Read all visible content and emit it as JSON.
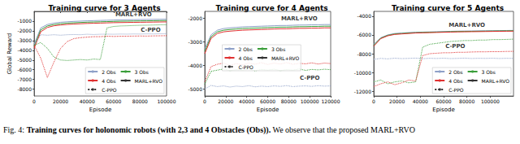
{
  "caption": {
    "label": "Fig. 4:",
    "bold": "Training curves for holonomic robots (with 2,3 and 4 Obstacles (Obs)).",
    "text": "We observe that the proposed MARL+RVO"
  },
  "chart_data": [
    {
      "type": "line",
      "title": "Training curve for 3 Agents",
      "x_label": "Episode",
      "y_label": "Global Reward",
      "x": [
        0,
        5000,
        10000,
        15000,
        20000,
        25000,
        30000,
        35000,
        40000,
        45000,
        50000,
        55000,
        60000,
        65000,
        70000,
        75000,
        80000,
        85000,
        90000,
        95000,
        100000
      ],
      "xlim": [
        0,
        100000
      ],
      "xticks": [
        0,
        20000,
        40000,
        60000,
        80000,
        100000
      ],
      "ylim": [
        -8700,
        0
      ],
      "yticks": [
        -8000,
        -7000,
        -6000,
        -5000,
        -4000,
        -3000,
        -2000,
        -1000
      ],
      "grid": false,
      "legend": "lower right",
      "annotations": [
        {
          "text": "MARL+RVO",
          "x": 75000,
          "y": -350
        },
        {
          "text": "C-PPO",
          "x": 88000,
          "y": -1900
        }
      ],
      "series": [
        {
          "name": "2 Obs",
          "method": "MARL+RVO",
          "line_style": "solid",
          "color": "#8ea0c8",
          "values": [
            -3400,
            -1700,
            -1350,
            -1200,
            -1120,
            -1070,
            -1030,
            -1000,
            -970,
            -950,
            -930,
            -910,
            -890,
            -870,
            -860,
            -850,
            -840,
            -830,
            -820,
            -810,
            -800
          ]
        },
        {
          "name": "3 Obs",
          "method": "MARL+RVO",
          "line_style": "solid",
          "color": "#3a9e3a",
          "values": [
            -3600,
            -1900,
            -1500,
            -1350,
            -1270,
            -1210,
            -1170,
            -1140,
            -1110,
            -1090,
            -1070,
            -1050,
            -1030,
            -1010,
            -1000,
            -990,
            -980,
            -970,
            -960,
            -950,
            -940
          ]
        },
        {
          "name": "4 Obs",
          "method": "MARL+RVO",
          "line_style": "solid",
          "color": "#e03030",
          "values": [
            -3800,
            -2100,
            -1650,
            -1480,
            -1400,
            -1340,
            -1300,
            -1270,
            -1240,
            -1220,
            -1200,
            -1180,
            -1160,
            -1150,
            -1140,
            -1130,
            -1120,
            -1110,
            -1100,
            -1090,
            -1080
          ]
        },
        {
          "name": "2 Obs",
          "method": "C-PPO",
          "line_style": "dotted",
          "color": "#8ea0c8",
          "values": [
            -3500,
            -2400,
            -2450,
            -2400,
            -2450,
            -2400,
            -2380,
            -2400,
            -2350,
            -2380,
            -2350,
            -2340,
            -2350,
            -2330,
            -2340,
            -2320,
            -2330,
            -2310,
            -2320,
            -2300,
            -2300
          ]
        },
        {
          "name": "3 Obs",
          "method": "C-PPO",
          "line_style": "dotted",
          "color": "#3a9e3a",
          "values": [
            -3500,
            -3200,
            -3800,
            -4700,
            -5000,
            -5050,
            -5000,
            -4950,
            -5000,
            -4900,
            -4950,
            -1700,
            -1550,
            -1500,
            -1480,
            -1450,
            -1430,
            -1420,
            -1400,
            -1380,
            -1370
          ]
        },
        {
          "name": "4 Obs",
          "method": "C-PPO",
          "line_style": "dotted",
          "color": "#e03030",
          "values": [
            -3500,
            -4800,
            -6800,
            -5200,
            -3800,
            -3100,
            -2800,
            -2700,
            -2650,
            -2600,
            -2600,
            -2550,
            -2580,
            -2560,
            -2550,
            -2540,
            -2530,
            -2540,
            -2520,
            -2510,
            -2500
          ]
        }
      ]
    },
    {
      "type": "line",
      "title": "Training curve for 4 Agents",
      "x_label": "Episode",
      "x": [
        0,
        6000,
        12000,
        18000,
        24000,
        30000,
        36000,
        42000,
        48000,
        54000,
        60000,
        66000,
        72000,
        78000,
        84000,
        90000,
        96000,
        102000,
        108000,
        114000,
        120000
      ],
      "xlim": [
        0,
        120000
      ],
      "xticks": [
        0,
        20000,
        40000,
        60000,
        80000,
        100000,
        120000
      ],
      "ylim": [
        -5300,
        -1700
      ],
      "yticks": [
        -5000,
        -4000,
        -3000,
        -2000
      ],
      "grid": false,
      "legend": "center",
      "annotations": [
        {
          "text": "MARL+RVO",
          "x": 90000,
          "y": -2000
        },
        {
          "text": "C-PPO",
          "x": 100000,
          "y": -4550
        }
      ],
      "series": [
        {
          "name": "2 Obs",
          "method": "MARL+RVO",
          "line_style": "solid",
          "color": "#8ea0c8",
          "values": [
            -3300,
            -2700,
            -2500,
            -2430,
            -2400,
            -2380,
            -2360,
            -2350,
            -2340,
            -2330,
            -2320,
            -2310,
            -2300,
            -2300,
            -2290,
            -2280,
            -2280,
            -2270,
            -2270,
            -2260,
            -2260
          ]
        },
        {
          "name": "3 Obs",
          "method": "MARL+RVO",
          "line_style": "solid",
          "color": "#3a9e3a",
          "values": [
            -3400,
            -2780,
            -2570,
            -2500,
            -2470,
            -2450,
            -2430,
            -2420,
            -2410,
            -2400,
            -2390,
            -2380,
            -2370,
            -2370,
            -2360,
            -2350,
            -2350,
            -2340,
            -2340,
            -2330,
            -2330
          ]
        },
        {
          "name": "4 Obs",
          "method": "MARL+RVO",
          "line_style": "solid",
          "color": "#e03030",
          "values": [
            -3500,
            -2850,
            -2640,
            -2570,
            -2540,
            -2520,
            -2500,
            -2490,
            -2480,
            -2470,
            -2460,
            -2450,
            -2440,
            -2440,
            -2430,
            -2420,
            -2420,
            -2410,
            -2410,
            -2400,
            -2400
          ]
        },
        {
          "name": "2 Obs",
          "method": "C-PPO",
          "line_style": "dotted",
          "color": "#8ea0c8",
          "values": [
            -5000,
            -4850,
            -4900,
            -4870,
            -4920,
            -4880,
            -4900,
            -4860,
            -4910,
            -4880,
            -4900,
            -4870,
            -4890,
            -4860,
            -4900,
            -4880,
            -4870,
            -4890,
            -4860,
            -4880,
            -4870
          ]
        },
        {
          "name": "3 Obs",
          "method": "C-PPO",
          "line_style": "dotted",
          "color": "#3a9e3a",
          "values": [
            -4800,
            -4250,
            -4200,
            -4150,
            -4220,
            -4180,
            -4200,
            -4150,
            -4230,
            -4170,
            -4200,
            -4160,
            -4220,
            -4180,
            -4200,
            -4150,
            -4210,
            -4170,
            -4190,
            -4160,
            -4180
          ]
        },
        {
          "name": "4 Obs",
          "method": "C-PPO",
          "line_style": "dotted",
          "color": "#e03030",
          "values": [
            -4700,
            -4050,
            -3950,
            -3900,
            -4000,
            -3920,
            -3980,
            -3900,
            -3950,
            -3880,
            -3960,
            -3900,
            -3940,
            -3880,
            -3950,
            -3910,
            -3930,
            -3890,
            -3940,
            -3900,
            -3920
          ]
        }
      ]
    },
    {
      "type": "line",
      "title": "Training curve for 5 Agents",
      "x_label": "Episode",
      "x": [
        0,
        6000,
        12000,
        18000,
        24000,
        30000,
        36000,
        42000,
        48000,
        54000,
        60000,
        66000,
        72000,
        78000,
        84000,
        90000,
        96000,
        102000,
        108000,
        114000,
        120000
      ],
      "xlim": [
        0,
        120000
      ],
      "xticks": [
        0,
        20000,
        40000,
        60000,
        80000,
        100000
      ],
      "ylim": [
        -12500,
        -3500
      ],
      "yticks": [
        -12000,
        -10000,
        -8000,
        -6000,
        -4000
      ],
      "grid": false,
      "legend": "lower right",
      "annotations": [
        {
          "text": "MARL+RVO",
          "x": 80000,
          "y": -5000
        },
        {
          "text": "C-PPO",
          "x": 70000,
          "y": -7250
        }
      ],
      "series": [
        {
          "name": "2 Obs",
          "method": "MARL+RVO",
          "line_style": "solid",
          "color": "#8ea0c8",
          "values": [
            -7000,
            -6300,
            -6000,
            -5850,
            -5800,
            -5750,
            -5720,
            -5700,
            -5680,
            -5660,
            -5640,
            -5620,
            -5600,
            -5590,
            -5580,
            -5570,
            -5560,
            -5550,
            -5540,
            -5530,
            -5520
          ]
        },
        {
          "name": "3 Obs",
          "method": "MARL+RVO",
          "line_style": "solid",
          "color": "#3a9e3a",
          "values": [
            -7100,
            -6350,
            -6050,
            -5900,
            -5850,
            -5800,
            -5760,
            -5740,
            -5720,
            -5700,
            -5680,
            -5660,
            -5640,
            -5630,
            -5620,
            -5610,
            -5600,
            -5590,
            -5580,
            -5570,
            -5560
          ]
        },
        {
          "name": "4 Obs",
          "method": "MARL+RVO",
          "line_style": "solid",
          "color": "#e03030",
          "values": [
            -7200,
            -6400,
            -6100,
            -5950,
            -5900,
            -5850,
            -5800,
            -5780,
            -5760,
            -5740,
            -5720,
            -5700,
            -5680,
            -5670,
            -5660,
            -5650,
            -5640,
            -5630,
            -5620,
            -5610,
            -5600
          ]
        },
        {
          "name": "2 Obs",
          "method": "C-PPO",
          "line_style": "dotted",
          "color": "#8ea0c8",
          "values": [
            -8600,
            -8500,
            -8550,
            -8480,
            -8520,
            -8500,
            -8470,
            -8530,
            -8490,
            -8510,
            -8480,
            -8520,
            -8500,
            -8470,
            -8510,
            -8490,
            -8500,
            -8480,
            -8510,
            -8490,
            -8500
          ]
        },
        {
          "name": "3 Obs",
          "method": "C-PPO",
          "line_style": "dotted",
          "color": "#3a9e3a",
          "values": [
            -11000,
            -10800,
            -11200,
            -11000,
            -10900,
            -11100,
            -11000,
            -7300,
            -7000,
            -6900,
            -6800,
            -6700,
            -6650,
            -6600,
            -6600,
            -6550,
            -6550,
            -6500,
            -6500,
            -6480,
            -6450
          ]
        },
        {
          "name": "4 Obs",
          "method": "C-PPO",
          "line_style": "dotted",
          "color": "#e03030",
          "values": [
            -11500,
            -11200,
            -11000,
            -11300,
            -11100,
            -10800,
            -10900,
            -8200,
            -8000,
            -7950,
            -7900,
            -7900,
            -7850,
            -7850,
            -7820,
            -7800,
            -7800,
            -7780,
            -7780,
            -7760,
            -7750
          ]
        }
      ]
    }
  ]
}
